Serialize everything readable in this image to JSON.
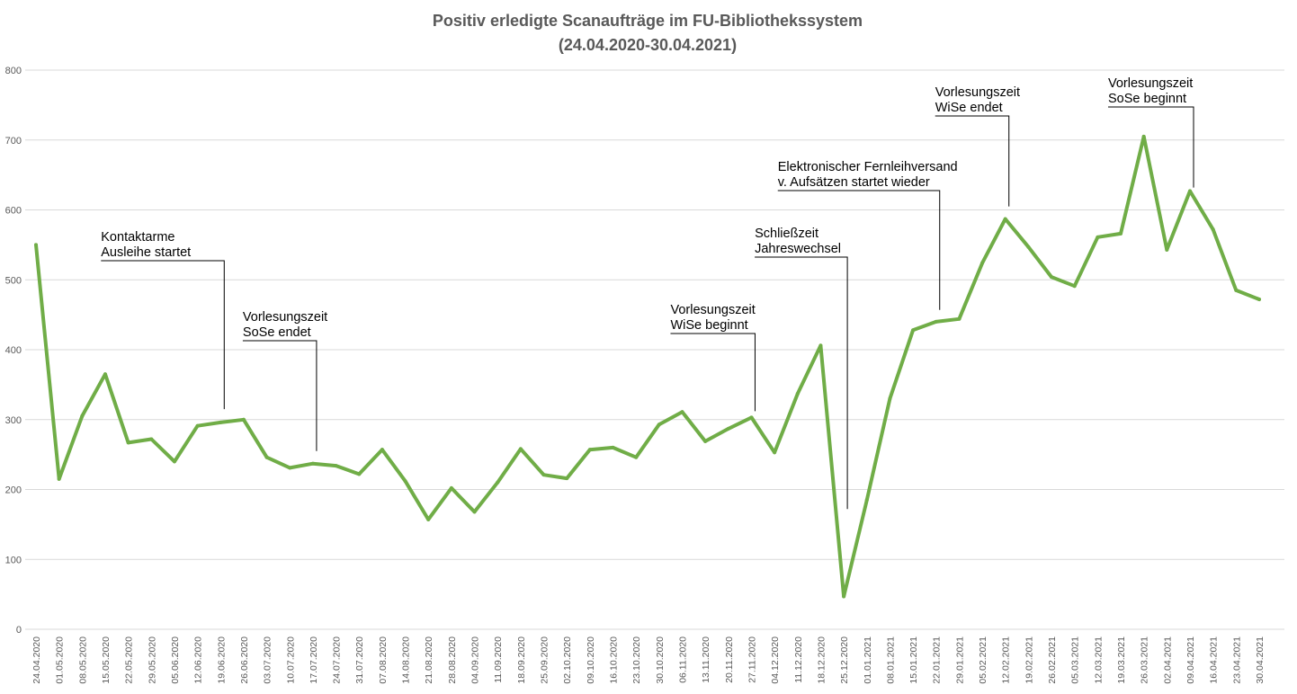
{
  "chart_data": {
    "type": "line",
    "title": [
      "Positiv erledigte Scanaufträge im FU-Bibliothekssystem",
      "(24.04.2020-30.04.2021)"
    ],
    "xlabel": "",
    "ylabel": "",
    "ylim": [
      0,
      800
    ],
    "yticks": [
      0,
      100,
      200,
      300,
      400,
      500,
      600,
      700,
      800
    ],
    "grid": true,
    "legend": "none",
    "line_color": "#70ad47",
    "categories": [
      "24.04.2020",
      "01.05.2020",
      "08.05.2020",
      "15.05.2020",
      "22.05.2020",
      "29.05.2020",
      "05.06.2020",
      "12.06.2020",
      "19.06.2020",
      "26.06.2020",
      "03.07.2020",
      "10.07.2020",
      "17.07.2020",
      "24.07.2020",
      "31.07.2020",
      "07.08.2020",
      "14.08.2020",
      "21.08.2020",
      "28.08.2020",
      "04.09.2020",
      "11.09.2020",
      "18.09.2020",
      "25.09.2020",
      "02.10.2020",
      "09.10.2020",
      "16.10.2020",
      "23.10.2020",
      "30.10.2020",
      "06.11.2020",
      "13.11.2020",
      "20.11.2020",
      "27.11.2020",
      "04.12.2020",
      "11.12.2020",
      "18.12.2020",
      "25.12.2020",
      "01.01.2021",
      "08.01.2021",
      "15.01.2021",
      "22.01.2021",
      "29.01.2021",
      "05.02.2021",
      "12.02.2021",
      "19.02.2021",
      "26.02.2021",
      "05.03.2021",
      "12.03.2021",
      "19.03.2021",
      "26.03.2021",
      "02.04.2021",
      "09.04.2021",
      "16.04.2021",
      "23.04.2021",
      "30.04.2021"
    ],
    "values": [
      550,
      215,
      305,
      365,
      267,
      272,
      240,
      291,
      296,
      300,
      246,
      231,
      237,
      234,
      222,
      257,
      212,
      157,
      202,
      168,
      210,
      258,
      221,
      216,
      257,
      260,
      246,
      293,
      311,
      269,
      287,
      303,
      253,
      337,
      406,
      47,
      185,
      330,
      428,
      440,
      444,
      524,
      587,
      547,
      504,
      491,
      561,
      566,
      705,
      543,
      627,
      572,
      485,
      472
    ],
    "annotations": [
      {
        "lines": [
          "Kontaktarme",
          "Ausleihe startet"
        ],
        "date": "19.06.2020",
        "value": 315
      },
      {
        "lines": [
          "Vorlesungszeit",
          "SoSe endet"
        ],
        "date": "17.07.2020",
        "value": 255
      },
      {
        "lines": [
          "Vorlesungszeit",
          "WiSe beginnt"
        ],
        "date": "27.11.2020",
        "value": 312
      },
      {
        "lines": [
          "Schließzeit",
          "Jahreswechsel"
        ],
        "date": "25.12.2020",
        "value": 172
      },
      {
        "lines": [
          "Elektronischer Fernleihversand",
          "v. Aufsätzen startet wieder"
        ],
        "date": "22.01.2021",
        "value": 457
      },
      {
        "lines": [
          "Vorlesungszeit",
          "WiSe endet"
        ],
        "date": "12.02.2021",
        "value": 605
      },
      {
        "lines": [
          "Vorlesungszeit",
          "SoSe beginnt"
        ],
        "date": "09.04.2021",
        "value": 632
      }
    ]
  }
}
